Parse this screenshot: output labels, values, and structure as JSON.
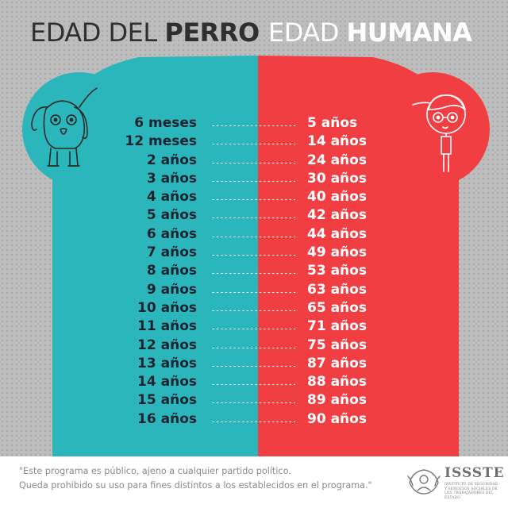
{
  "header": {
    "dog_title_light": "EDAD DEL ",
    "dog_title_bold": "PERRO",
    "human_title_light": "EDAD ",
    "human_title_bold": "HUMANA"
  },
  "colors": {
    "teal": "#2bb6bc",
    "red": "#f13e43",
    "background_gray": "#bdbdbd",
    "text_dark": "#1c2330"
  },
  "icons": {
    "dog": "dog-face-icon",
    "person": "person-icon",
    "logo": "issste-emblem-icon"
  },
  "rows": [
    {
      "dog": "6 meses",
      "human": "5 años"
    },
    {
      "dog": "12 meses",
      "human": "14 años"
    },
    {
      "dog": "2 años",
      "human": "24 años"
    },
    {
      "dog": "3 años",
      "human": "30 años"
    },
    {
      "dog": "4 años",
      "human": "40 años"
    },
    {
      "dog": "5 años",
      "human": "42 años"
    },
    {
      "dog": "6 años",
      "human": "44 años"
    },
    {
      "dog": "7 años",
      "human": "49 años"
    },
    {
      "dog": "8 años",
      "human": "53 años"
    },
    {
      "dog": "9 años",
      "human": "63 años"
    },
    {
      "dog": "10 años",
      "human": "65 años"
    },
    {
      "dog": "11 años",
      "human": "71 años"
    },
    {
      "dog": "12 años",
      "human": "75 años"
    },
    {
      "dog": "13 años",
      "human": "87 años"
    },
    {
      "dog": "14 años",
      "human": "88 años"
    },
    {
      "dog": "15 años",
      "human": "89 años"
    },
    {
      "dog": "16 años",
      "human": "90 años"
    }
  ],
  "footer": {
    "line1": "\"Este programa es público, ajeno a cualquier partido político.",
    "line2": "Queda prohibido su uso para fines distintos a los establecidos en el programa.\"",
    "logo_name": "ISSSTE",
    "logo_subtitle": "INSTITUTO DE SEGURIDAD Y SERVICIOS SOCIALES DE LOS TRABAJADORES DEL ESTADO"
  }
}
